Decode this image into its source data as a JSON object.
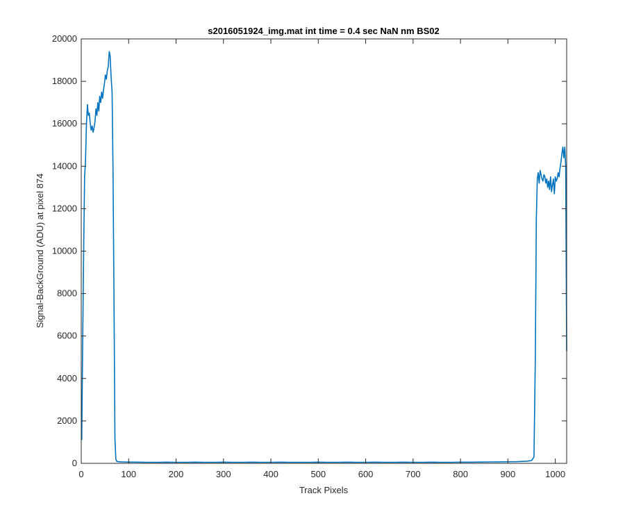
{
  "chart_data": {
    "type": "line",
    "title": "s2016051924_img.mat int time = 0.4 sec  NaN nm BS02",
    "xlabel": "Track Pixels",
    "ylabel": "Signal-BackGround (ADU) at pixel 874",
    "xlim": [
      0,
      1024
    ],
    "ylim": [
      0,
      20000
    ],
    "xticks": [
      0,
      100,
      200,
      300,
      400,
      500,
      600,
      700,
      800,
      900,
      1000
    ],
    "yticks": [
      0,
      2000,
      4000,
      6000,
      8000,
      10000,
      12000,
      14000,
      16000,
      18000,
      20000
    ],
    "grid": false,
    "legend": "none",
    "series": [
      {
        "color": "#0072bd",
        "x": [
          1,
          3,
          5,
          7,
          9,
          11,
          13,
          15,
          17,
          19,
          21,
          23,
          25,
          27,
          29,
          31,
          33,
          35,
          37,
          39,
          41,
          43,
          45,
          47,
          49,
          51,
          53,
          55,
          57,
          59,
          61,
          63,
          65,
          67,
          69,
          71,
          73,
          75,
          78,
          80,
          85,
          90,
          100,
          120,
          140,
          160,
          180,
          200,
          220,
          240,
          260,
          280,
          300,
          320,
          340,
          360,
          380,
          400,
          420,
          440,
          460,
          480,
          500,
          520,
          540,
          560,
          580,
          600,
          620,
          640,
          660,
          680,
          700,
          720,
          740,
          760,
          780,
          800,
          820,
          840,
          860,
          880,
          900,
          920,
          940,
          950,
          955,
          958,
          960,
          962,
          964,
          966,
          968,
          970,
          972,
          974,
          976,
          978,
          980,
          982,
          984,
          986,
          988,
          990,
          992,
          994,
          996,
          998,
          1000,
          1002,
          1004,
          1006,
          1008,
          1010,
          1012,
          1014,
          1016,
          1018,
          1020,
          1022,
          1024
        ],
        "y": [
          1100,
          5500,
          9800,
          13500,
          14200,
          16000,
          16900,
          16400,
          16500,
          16000,
          15700,
          15900,
          15600,
          15800,
          16100,
          16700,
          16400,
          17000,
          16600,
          17300,
          17000,
          17500,
          17200,
          17600,
          17900,
          18300,
          18100,
          18500,
          18700,
          19400,
          19200,
          18200,
          17500,
          14000,
          8000,
          1200,
          200,
          90,
          80,
          75,
          70,
          65,
          60,
          55,
          50,
          50,
          55,
          50,
          50,
          55,
          50,
          50,
          55,
          50,
          50,
          55,
          50,
          50,
          55,
          50,
          50,
          50,
          55,
          50,
          50,
          55,
          50,
          50,
          55,
          50,
          50,
          55,
          50,
          50,
          55,
          50,
          50,
          55,
          55,
          60,
          65,
          70,
          75,
          80,
          100,
          130,
          300,
          5000,
          11500,
          13400,
          13700,
          13200,
          13800,
          13600,
          13400,
          13300,
          13600,
          13500,
          13200,
          13400,
          13000,
          13300,
          12900,
          13500,
          12800,
          13100,
          13400,
          12700,
          13500,
          13300,
          13400,
          13700,
          13500,
          13900,
          14200,
          14600,
          14900,
          14400,
          14900,
          14000,
          5300
        ]
      }
    ]
  }
}
